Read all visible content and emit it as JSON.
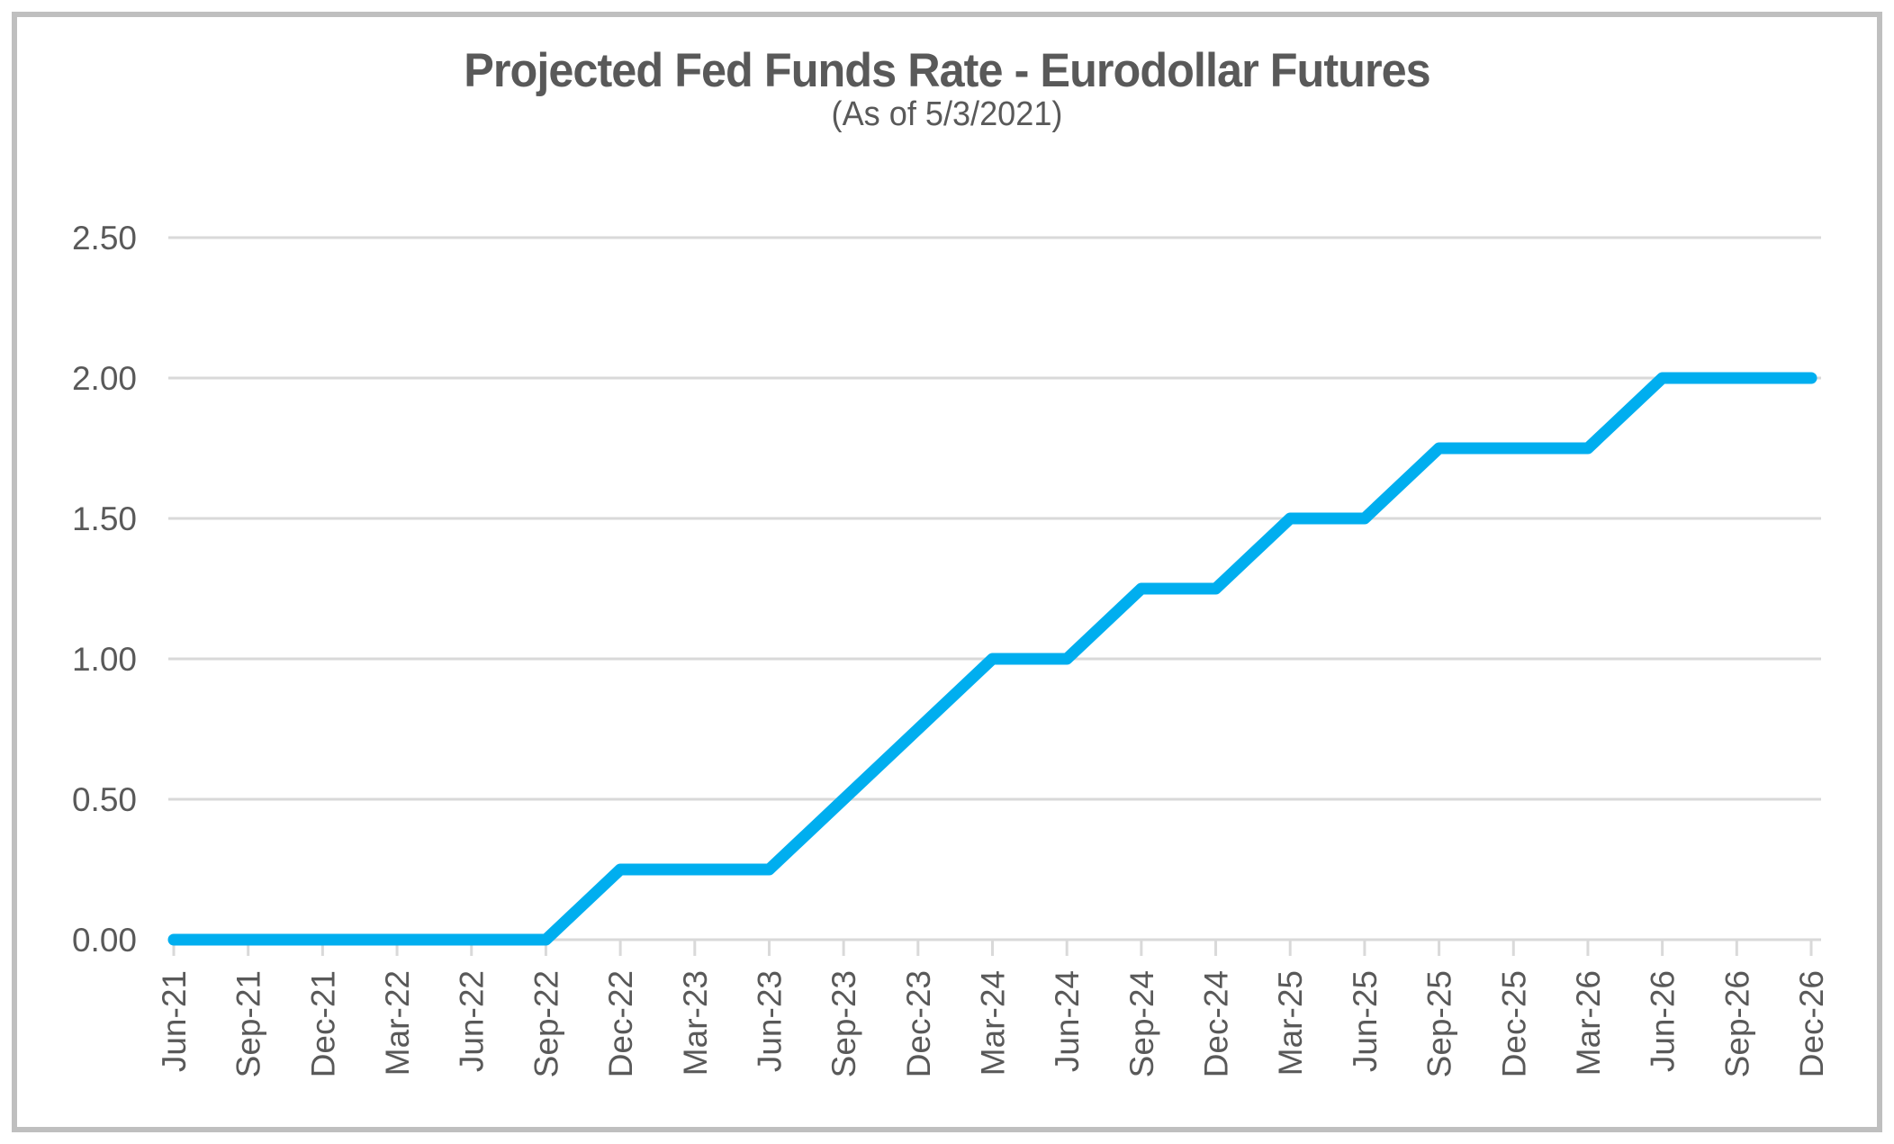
{
  "chart_data": {
    "type": "line",
    "title": "Projected Fed Funds Rate - Eurodollar Futures",
    "subtitle": "(As of 5/3/2021)",
    "x": [
      "Jun-21",
      "Sep-21",
      "Dec-21",
      "Mar-22",
      "Jun-22",
      "Sep-22",
      "Dec-22",
      "Mar-23",
      "Jun-23",
      "Sep-23",
      "Dec-23",
      "Mar-24",
      "Jun-24",
      "Sep-24",
      "Dec-24",
      "Mar-25",
      "Jun-25",
      "Sep-25",
      "Dec-25",
      "Mar-26",
      "Jun-26",
      "Sep-26",
      "Dec-26"
    ],
    "values": [
      0.0,
      0.0,
      0.0,
      0.0,
      0.0,
      0.0,
      0.25,
      0.25,
      0.25,
      0.5,
      0.75,
      1.0,
      1.0,
      1.25,
      1.25,
      1.5,
      1.5,
      1.75,
      1.75,
      1.75,
      2.0,
      2.0,
      2.0
    ],
    "ylim": [
      0,
      2.5
    ],
    "yticks": [
      "0.00",
      "0.50",
      "1.00",
      "1.50",
      "2.00",
      "2.50"
    ],
    "grid": "horizontal",
    "legend": "none",
    "x_label_rotation": -90,
    "colors": {
      "line": "#00AEEF",
      "grid": "#D9D9D9",
      "axis": "#D9D9D9",
      "text": "#595959",
      "title": "#595959",
      "frame": "#BFBFBF",
      "background": "#FFFFFF"
    }
  }
}
